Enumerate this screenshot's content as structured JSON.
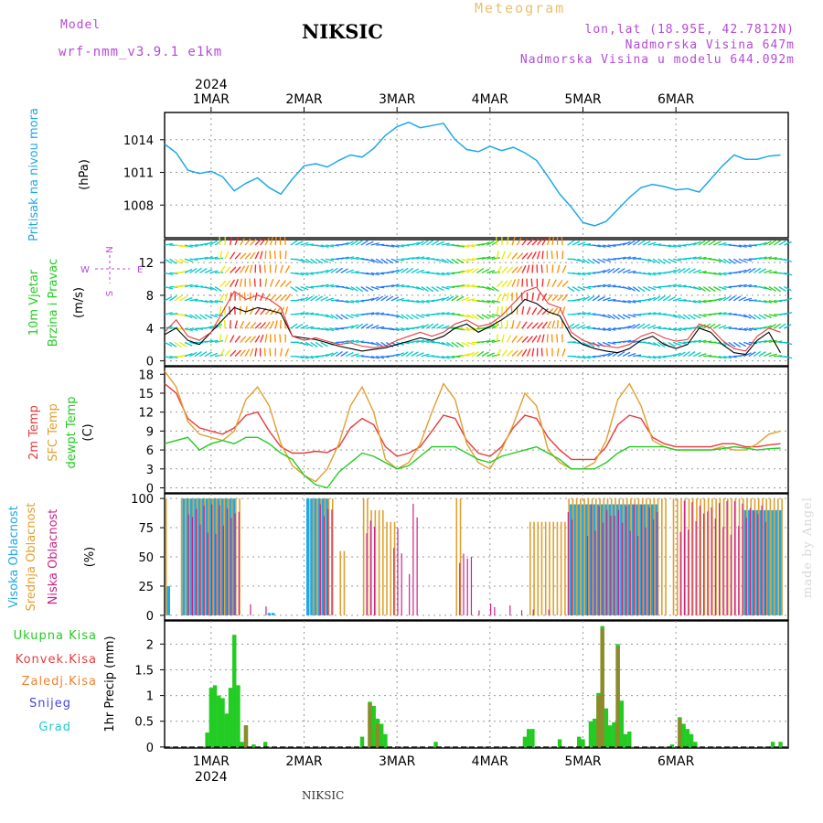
{
  "header": {
    "model_label": "Model",
    "model_name": "wrf-nmm_v3.9.1 e1km",
    "station": "NIKSIC",
    "meteogram_label": "Meteogram",
    "coords": "lon,lat (18.95E, 42.7812N)",
    "elevation": "Nadmorska Visina 647m",
    "model_elevation": "Nadmorska Visina u modelu 644.092m",
    "year": "2024",
    "watermark": "made by Angel",
    "footer_station": "NIKSIC"
  },
  "colors": {
    "pressure": "#1ea8e8",
    "wind_speed_label": "#22cc22",
    "temp2m": "#e83c3c",
    "sfc": "#e0a030",
    "dew": "#22cc22",
    "high_cloud": "#1ea8e8",
    "mid_cloud": "#e0a030",
    "low_cloud": "#cc2288",
    "precip_total": "#22cc22",
    "precip_conv": "#e83c3c",
    "precip_frz": "#f08030",
    "snow": "#4444dd",
    "hail": "#22cccc",
    "compass": "#b44ad8"
  },
  "chart_data": [
    {
      "type": "line",
      "name": "pressure",
      "ylabel_main": "Pritisak na nivou mora",
      "ylabel_unit": "(hPa)",
      "x_ticks": [
        "1MAR",
        "2MAR",
        "3MAR",
        "4MAR",
        "5MAR",
        "6MAR"
      ],
      "yticks": [
        "1008",
        "1011",
        "1014"
      ],
      "ylim": [
        1005,
        1016.5
      ],
      "x": [
        0,
        3,
        6,
        9,
        12,
        15,
        18,
        21,
        24,
        27,
        30,
        33,
        36,
        39,
        42,
        45,
        48,
        51,
        54,
        57,
        60,
        63,
        66,
        69,
        72,
        75,
        78,
        81,
        84,
        87,
        90,
        93,
        96,
        99,
        102,
        105,
        108,
        111,
        114,
        117,
        120,
        123,
        126,
        129,
        132,
        135,
        138,
        141,
        144,
        147,
        150,
        153,
        156,
        159
      ],
      "series": [
        {
          "values": [
            1013.6,
            1012.8,
            1011.2,
            1010.9,
            1011.1,
            1010.6,
            1009.3,
            1010.0,
            1010.5,
            1009.6,
            1009.0,
            1010.4,
            1011.6,
            1011.8,
            1011.5,
            1012.1,
            1012.6,
            1012.4,
            1013.2,
            1014.4,
            1015.2,
            1015.6,
            1015.1,
            1015.3,
            1015.5,
            1014.0,
            1013.1,
            1012.9,
            1013.4,
            1013.0,
            1013.3,
            1012.8,
            1012.1,
            1010.6,
            1009.0,
            1007.8,
            1006.4,
            1006.1,
            1006.5,
            1007.6,
            1008.7,
            1009.6,
            1009.9,
            1009.7,
            1009.4,
            1009.5,
            1009.2,
            1010.4,
            1011.6,
            1012.6,
            1012.2,
            1012.2,
            1012.5,
            1012.6
          ]
        }
      ]
    },
    {
      "type": "line",
      "name": "wind",
      "ylabel_main": "10m Vjetar",
      "ylabel_sub": "Brzina i Pravac",
      "ylabel_unit": "(m/s)",
      "compass_labels": [
        "N",
        "W",
        "E",
        "S"
      ],
      "yticks": [
        "0",
        "4",
        "8",
        "12"
      ],
      "ylim": [
        -0.6,
        14.8
      ],
      "x": [
        0,
        3,
        6,
        9,
        12,
        15,
        18,
        21,
        24,
        27,
        30,
        33,
        36,
        39,
        42,
        45,
        48,
        51,
        54,
        57,
        60,
        63,
        66,
        69,
        72,
        75,
        78,
        81,
        84,
        87,
        90,
        93,
        96,
        99,
        102,
        105,
        108,
        111,
        114,
        117,
        120,
        123,
        126,
        129,
        132,
        135,
        138,
        141,
        144,
        147,
        150,
        153,
        156,
        159
      ],
      "series": [
        {
          "values": [
            3.2,
            4.0,
            2.5,
            2.0,
            3.5,
            5.0,
            6.5,
            6.0,
            6.5,
            6.2,
            5.8,
            3.0,
            2.8,
            2.6,
            2.2,
            1.8,
            1.5,
            1.2,
            1.4,
            1.6,
            2.0,
            2.4,
            2.8,
            2.5,
            3.0,
            4.0,
            4.5,
            3.5,
            4.2,
            5.0,
            6.0,
            7.5,
            7.0,
            6.0,
            5.5,
            3.0,
            2.0,
            1.5,
            1.2,
            1.0,
            1.5,
            2.5,
            3.0,
            2.0,
            1.5,
            2.0,
            4.0,
            3.5,
            2.0,
            1.0,
            0.8,
            2.5,
            3.5,
            1.0
          ]
        },
        {
          "values": [
            3.5,
            5.0,
            3.0,
            2.5,
            3.5,
            6.0,
            8.5,
            7.5,
            8.0,
            7.5,
            6.5,
            3.0,
            2.5,
            2.8,
            2.4,
            2.0,
            2.2,
            1.8,
            1.6,
            1.8,
            2.5,
            3.0,
            3.5,
            3.0,
            3.5,
            4.5,
            5.0,
            4.2,
            4.5,
            5.5,
            7.0,
            8.5,
            9.0,
            7.0,
            6.5,
            3.5,
            2.5,
            2.0,
            1.8,
            1.6,
            2.0,
            3.0,
            3.5,
            2.8,
            2.4,
            2.6,
            4.5,
            4.0,
            2.5,
            1.5,
            1.2,
            3.0,
            4.0,
            3.5
          ]
        }
      ]
    },
    {
      "type": "line",
      "name": "temperature",
      "ylabel_lines": [
        "2m Temp",
        "SFC Temp",
        "dewpt Temp"
      ],
      "ylabel_unit": "(C)",
      "yticks": [
        "0",
        "3",
        "6",
        "9",
        "12",
        "15",
        "18"
      ],
      "ylim": [
        -0.8,
        19.2
      ],
      "x": [
        0,
        3,
        6,
        9,
        12,
        15,
        18,
        21,
        24,
        27,
        30,
        33,
        36,
        39,
        42,
        45,
        48,
        51,
        54,
        57,
        60,
        63,
        66,
        69,
        72,
        75,
        78,
        81,
        84,
        87,
        90,
        93,
        96,
        99,
        102,
        105,
        108,
        111,
        114,
        117,
        120,
        123,
        126,
        129,
        132,
        135,
        138,
        141,
        144,
        147,
        150,
        153,
        156,
        159
      ],
      "series": [
        {
          "name": "2m Temp",
          "values": [
            16.5,
            15.0,
            11.0,
            9.5,
            9.0,
            8.5,
            9.5,
            11.5,
            12.0,
            9.0,
            6.5,
            5.5,
            5.5,
            5.8,
            5.6,
            6.5,
            9.5,
            11.0,
            10.0,
            6.5,
            5.0,
            5.5,
            6.5,
            9.0,
            11.5,
            11.0,
            7.5,
            5.5,
            5.0,
            6.5,
            9.5,
            11.5,
            11.0,
            8.0,
            6.0,
            4.5,
            4.5,
            4.5,
            6.5,
            10.0,
            11.5,
            11.0,
            8.0,
            7.0,
            6.5,
            6.5,
            6.5,
            6.5,
            7.0,
            7.0,
            6.5,
            6.5,
            6.8,
            7.0
          ]
        },
        {
          "name": "SFC Temp",
          "values": [
            18.5,
            16.0,
            10.5,
            8.5,
            8.0,
            7.5,
            9.0,
            14.0,
            16.0,
            13.0,
            7.0,
            3.5,
            2.0,
            1.0,
            3.0,
            7.0,
            13.0,
            16.0,
            12.0,
            4.5,
            3.0,
            4.0,
            7.0,
            12.0,
            16.5,
            14.0,
            7.0,
            4.0,
            3.0,
            6.0,
            10.0,
            15.0,
            13.0,
            6.0,
            4.0,
            3.0,
            3.0,
            4.0,
            7.5,
            14.0,
            16.5,
            13.0,
            7.5,
            6.5,
            6.0,
            6.0,
            6.0,
            6.0,
            6.5,
            6.0,
            6.0,
            7.0,
            8.5,
            9.0
          ]
        },
        {
          "name": "dewpt Temp",
          "values": [
            7.0,
            7.5,
            8.0,
            6.0,
            7.0,
            7.5,
            7.0,
            8.0,
            8.0,
            7.0,
            5.5,
            4.5,
            2.0,
            0.5,
            0.0,
            2.5,
            4.0,
            5.5,
            5.0,
            4.0,
            3.0,
            3.5,
            5.0,
            6.5,
            6.5,
            6.5,
            5.5,
            4.5,
            4.0,
            5.0,
            5.5,
            6.0,
            6.5,
            5.5,
            4.5,
            3.0,
            3.0,
            3.0,
            4.0,
            5.5,
            6.5,
            6.5,
            6.5,
            6.5,
            6.0,
            6.0,
            6.0,
            6.0,
            6.2,
            6.5,
            6.3,
            6.0,
            6.2,
            6.3
          ]
        }
      ]
    },
    {
      "type": "bar",
      "name": "cloud",
      "ylabel_lines": [
        "Visoka Oblacnost",
        "Srednja Oblacnost",
        "Niska Oblacnost"
      ],
      "ylabel_unit": "(%)",
      "yticks": [
        "0",
        "25",
        "50",
        "75",
        "100"
      ],
      "ylim": [
        -4,
        104
      ],
      "series": [
        {
          "name": "Visoka Oblacnost",
          "segments": [
            [
              1,
              2,
              25
            ],
            [
              5,
              19,
              100
            ],
            [
              27,
              29,
              2
            ],
            [
              37,
              43,
              100
            ],
            [
              64,
              66,
              0
            ],
            [
              105,
              128,
              95
            ],
            [
              150,
              160,
              90
            ]
          ]
        },
        {
          "name": "Srednja Oblacnost",
          "segments": [
            [
              0,
              1,
              100
            ],
            [
              4,
              20,
              100
            ],
            [
              38,
              44,
              100
            ],
            [
              45,
              47,
              55
            ],
            [
              51,
              53,
              100
            ],
            [
              53,
              57,
              90
            ],
            [
              57,
              60,
              80
            ],
            [
              75,
              77,
              100
            ],
            [
              94,
              104,
              80
            ],
            [
              104,
              130,
              100
            ],
            [
              131,
              160,
              100
            ]
          ]
        },
        {
          "name": "Niska Oblacnost",
          "segments": [
            [
              6,
              20,
              95
            ],
            [
              22,
              23,
              12
            ],
            [
              26,
              27,
              10
            ],
            [
              40,
              44,
              98
            ],
            [
              52,
              55,
              85
            ],
            [
              59,
              62,
              75
            ],
            [
              63,
              64,
              45
            ],
            [
              64,
              66,
              98
            ],
            [
              76,
              80,
              55
            ],
            [
              81,
              82,
              5
            ],
            [
              84,
              86,
              10
            ],
            [
              89,
              90,
              10
            ],
            [
              92,
              93,
              5
            ],
            [
              95,
              96,
              5
            ],
            [
              99,
              100,
              5
            ],
            [
              104,
              106,
              95
            ],
            [
              109,
              128,
              95
            ],
            [
              133,
              156,
              98
            ]
          ]
        }
      ]
    },
    {
      "type": "bar",
      "name": "precipitation",
      "ylabel_lines": [
        "Ukupna Kisa",
        "Konvek.Kisa",
        "Zaledj.Kisa",
        "Snijeg",
        "Grad"
      ],
      "ylabel_unit": "1hr Precip (mm)",
      "yticks": [
        "0",
        "0.5",
        "1",
        "1.5",
        "2"
      ],
      "ylim": [
        -0.02,
        2.45
      ],
      "series": [
        {
          "name": "Ukupna Kisa",
          "bars": [
            [
              11,
              0.28
            ],
            [
              12,
              1.15
            ],
            [
              13,
              1.2
            ],
            [
              14,
              1.0
            ],
            [
              15,
              0.95
            ],
            [
              16,
              0.65
            ],
            [
              17,
              1.15
            ],
            [
              18,
              2.18
            ],
            [
              19,
              1.2
            ],
            [
              20,
              0.1
            ],
            [
              21,
              0.42
            ],
            [
              23,
              0.05
            ],
            [
              26,
              0.1
            ],
            [
              51,
              0.2
            ],
            [
              53,
              0.88
            ],
            [
              54,
              0.8
            ],
            [
              55,
              0.55
            ],
            [
              56,
              0.45
            ],
            [
              57,
              0.25
            ],
            [
              70,
              0.1
            ],
            [
              93,
              0.2
            ],
            [
              94,
              0.35
            ],
            [
              95,
              0.35
            ],
            [
              102,
              0.15
            ],
            [
              107,
              0.2
            ],
            [
              108,
              0.15
            ],
            [
              110,
              0.5
            ],
            [
              111,
              0.55
            ],
            [
              112,
              1.05
            ],
            [
              113,
              2.35
            ],
            [
              114,
              0.75
            ],
            [
              115,
              0.42
            ],
            [
              116,
              0.48
            ],
            [
              117,
              2.0
            ],
            [
              118,
              0.9
            ],
            [
              119,
              0.25
            ],
            [
              120,
              0.3
            ],
            [
              131,
              0.05
            ],
            [
              133,
              0.58
            ],
            [
              134,
              0.45
            ],
            [
              135,
              0.35
            ],
            [
              136,
              0.25
            ],
            [
              137,
              0.1
            ],
            [
              157,
              0.1
            ],
            [
              159,
              0.1
            ]
          ]
        },
        {
          "name": "Konvek.Kisa",
          "bars": [
            [
              21,
              0.42
            ],
            [
              53,
              0.85
            ],
            [
              55,
              0.45
            ],
            [
              112,
              1.0
            ],
            [
              113,
              2.3
            ],
            [
              117,
              1.95
            ],
            [
              133,
              0.55
            ]
          ]
        },
        {
          "name": "Zaledj.Kisa",
          "bars": []
        },
        {
          "name": "Snijeg",
          "bars": []
        },
        {
          "name": "Grad",
          "bars": []
        }
      ]
    }
  ]
}
